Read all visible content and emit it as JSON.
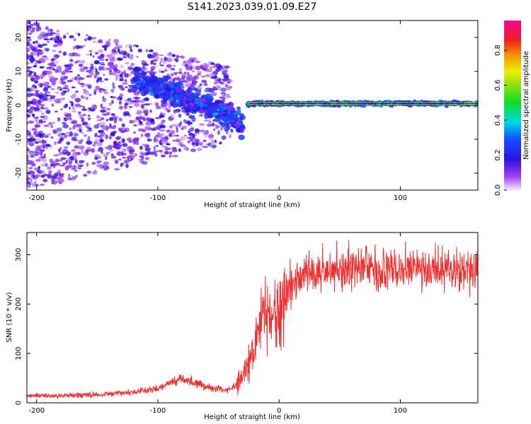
{
  "title": "S141.2023.039.01.09.E27",
  "colorbar": {
    "label": "Normalized spectral amplitude",
    "ticks": [
      "0.0",
      "0.2",
      "0.4",
      "0.6",
      "0.8"
    ],
    "tick_values": [
      0.0,
      0.2,
      0.4,
      0.6,
      0.8
    ],
    "range": [
      0,
      0.97
    ],
    "colormap": "rainbow (white-violet → blue → cyan → green → yellow → red → magenta)"
  },
  "chart_data": [
    {
      "type": "heatmap",
      "name": "spectrogram",
      "title": "",
      "xlabel": "Height of straight line (km)",
      "ylabel": "Frequency (Hz)",
      "xlim": [
        -208,
        164
      ],
      "ylim": [
        -25,
        25
      ],
      "x_ticks": [
        -200,
        -100,
        0,
        100
      ],
      "x_tick_labels": [
        "-200",
        "-100",
        "0",
        "100"
      ],
      "y_ticks": [
        -20,
        -10,
        0,
        10,
        20
      ],
      "y_tick_labels": [
        "-20",
        "-10",
        "0",
        "10",
        "20"
      ],
      "grid": false,
      "features": [
        {
          "description": "diffuse scattered spectral energy",
          "x_range": [
            -208,
            -40
          ],
          "freq_range": [
            -25,
            25
          ],
          "amplitude": 0.1
        },
        {
          "description": "descending drift band",
          "x_range": [
            -120,
            -30
          ],
          "freq_start": 8,
          "freq_end": -5,
          "amplitude": 0.2
        },
        {
          "description": "steady carrier line near 0 Hz",
          "x_range": [
            -25,
            164
          ],
          "freq": 0.5,
          "amplitude": 0.95
        }
      ]
    },
    {
      "type": "line",
      "name": "snr",
      "title": "",
      "xlabel": "Height of straight line (km)",
      "ylabel": "SNR (10 * v/v)",
      "xlim": [
        -208,
        164
      ],
      "ylim": [
        0,
        345
      ],
      "x_ticks": [
        -200,
        -100,
        0,
        100
      ],
      "x_tick_labels": [
        "-200",
        "-100",
        "0",
        "100"
      ],
      "y_ticks": [
        0,
        100,
        200,
        300
      ],
      "y_tick_labels": [
        "0",
        "100",
        "200",
        "300"
      ],
      "grid": false,
      "color": "#f03030",
      "series": [
        {
          "x": [
            -208,
            -200,
            -190,
            -180,
            -170,
            -160,
            -150,
            -140,
            -130,
            -120,
            -110,
            -100,
            -95,
            -90,
            -85,
            -80,
            -75,
            -70,
            -65,
            -60,
            -55,
            -50,
            -45,
            -40,
            -35,
            -30,
            -25,
            -20,
            -15,
            -10,
            -8,
            -5,
            0,
            5,
            10,
            15,
            20,
            25,
            30,
            35,
            40,
            50,
            60,
            70,
            80,
            90,
            100,
            110,
            120,
            130,
            140,
            150,
            160,
            164
          ],
          "y": [
            14,
            15,
            14,
            15,
            15,
            16,
            16,
            18,
            20,
            22,
            25,
            30,
            35,
            40,
            45,
            48,
            46,
            40,
            38,
            32,
            30,
            28,
            25,
            28,
            35,
            55,
            80,
            120,
            170,
            195,
            160,
            185,
            200,
            215,
            230,
            248,
            258,
            264,
            270,
            268,
            270,
            272,
            275,
            278,
            270,
            268,
            270,
            268,
            266,
            270,
            268,
            262,
            270,
            272
          ]
        }
      ]
    }
  ]
}
